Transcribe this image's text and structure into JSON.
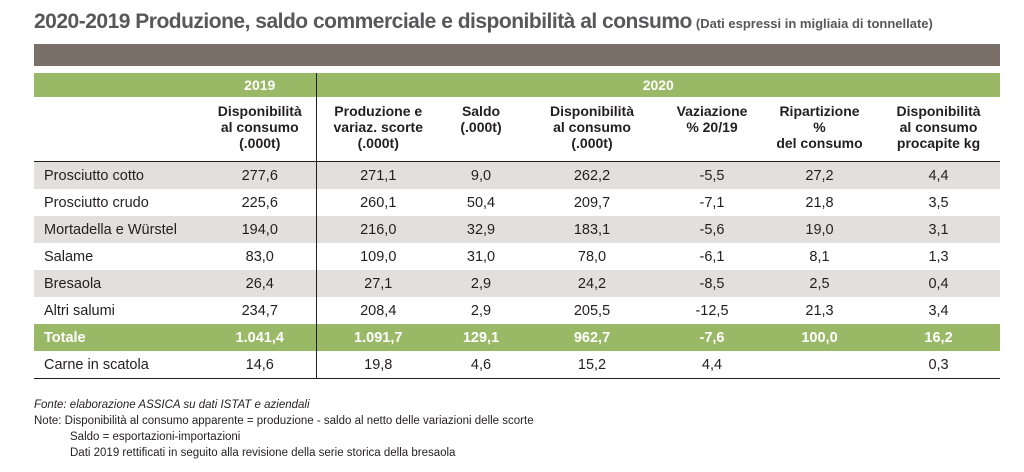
{
  "title": {
    "main": "2020-2019 Produzione, saldo commerciale e disponibilità al consumo",
    "sub": "(Dati espressi in migliaia di tonnellate)"
  },
  "table": {
    "year_headers": [
      "2019",
      "2020"
    ],
    "columns": [
      [
        "Disponibilità",
        "al consumo",
        "(.000t)"
      ],
      [
        "Produzione e",
        "variaz. scorte",
        "(.000t)"
      ],
      [
        "Saldo",
        "(.000t)",
        ""
      ],
      [
        "Disponibilità",
        "al consumo",
        "(.000t)"
      ],
      [
        "Vaziazione",
        "% 20/19",
        ""
      ],
      [
        "Ripartizione",
        "%",
        "del consumo"
      ],
      [
        "Disponibilità",
        "al consumo",
        "procapite kg"
      ]
    ],
    "rows": [
      {
        "label": "Prosciutto cotto",
        "values": [
          "277,6",
          "271,1",
          "9,0",
          "262,2",
          "-5,5",
          "27,2",
          "4,4"
        ]
      },
      {
        "label": "Prosciutto crudo",
        "values": [
          "225,6",
          "260,1",
          "50,4",
          "209,7",
          "-7,1",
          "21,8",
          "3,5"
        ]
      },
      {
        "label": "Mortadella e Würstel",
        "values": [
          "194,0",
          "216,0",
          "32,9",
          "183,1",
          "-5,6",
          "19,0",
          "3,1"
        ]
      },
      {
        "label": "Salame",
        "values": [
          "83,0",
          "109,0",
          "31,0",
          "78,0",
          "-6,1",
          "8,1",
          "1,3"
        ]
      },
      {
        "label": "Bresaola",
        "values": [
          "26,4",
          "27,1",
          "2,9",
          "24,2",
          "-8,5",
          "2,5",
          "0,4"
        ]
      },
      {
        "label": "Altri salumi",
        "values": [
          "234,7",
          "208,4",
          "2,9",
          "205,5",
          "-12,5",
          "21,3",
          "3,4"
        ]
      }
    ],
    "total": {
      "label": "Totale",
      "values": [
        "1.041,4",
        "1.091,7",
        "129,1",
        "962,7",
        "-7,6",
        "100,0",
        "16,2"
      ]
    },
    "extra": {
      "label": "Carne in scatola",
      "values": [
        "14,6",
        "19,8",
        "4,6",
        "15,2",
        "4,4",
        "",
        "0,3"
      ]
    }
  },
  "notes": {
    "fonte": "Fonte: elaborazione ASSICA su dati ISTAT e aziendali",
    "note1": "Note: Disponibilità al consumo apparente = produzione - saldo al netto delle variazioni delle scorte",
    "note2": "Saldo = esportazioni-importazioni",
    "note3": "Dati 2019  rettificati in seguito alla revisione della serie storica della bresaola"
  },
  "colors": {
    "green": "#9ab966",
    "brown": "#7b6f6a",
    "shade": "#e2dfdc",
    "title_gray": "#58585a"
  }
}
